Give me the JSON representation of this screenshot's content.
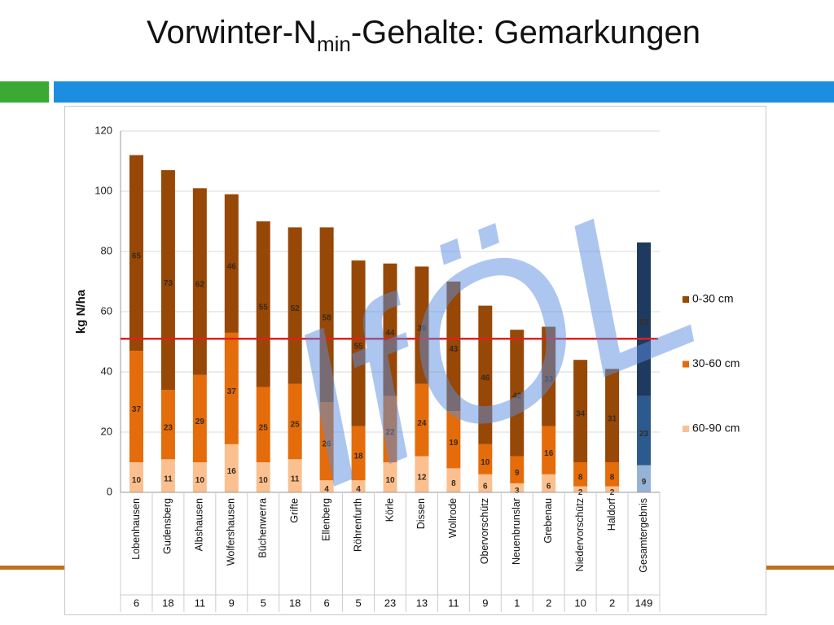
{
  "chart_data": {
    "type": "stacked_bar",
    "title": {
      "main": "Vorwinter-N",
      "sub": "min",
      "rest": "-Gehalte: Gemarkungen"
    },
    "y_axis_label": "kg N/ha",
    "watermark": "IfÖL",
    "categories": [
      "Lobenhausen",
      "Gudensberg",
      "Albshausen",
      "Wolfershausen",
      "Büchenwerra",
      "Grifte",
      "Ellenberg",
      "Röhrenfurth",
      "Körle",
      "Dissen",
      "Wollrode",
      "Obervorschütz",
      "Neuenbrunslar",
      "Grebenau",
      "Niedervorschütz",
      "Haldorf",
      "Gesamtergebnis"
    ],
    "sample_counts": [
      6,
      18,
      11,
      9,
      5,
      18,
      6,
      5,
      23,
      13,
      11,
      9,
      1,
      2,
      10,
      2,
      149
    ],
    "highlight_category": "Gesamtergebnis",
    "series": [
      {
        "name": "60-90 cm",
        "color": "#fac090",
        "highlight_color": "#95b3d7",
        "values": [
          10,
          11,
          10,
          16,
          10,
          11,
          4,
          4,
          10,
          12,
          8,
          6,
          3,
          6,
          2,
          2,
          9
        ]
      },
      {
        "name": "30-60 cm",
        "color": "#e46c0a",
        "highlight_color": "#2b5a8e",
        "values": [
          37,
          23,
          29,
          37,
          25,
          25,
          26,
          18,
          22,
          24,
          19,
          10,
          9,
          16,
          8,
          8,
          23
        ]
      },
      {
        "name": "0-30 cm",
        "color": "#974706",
        "highlight_color": "#1f3a5f",
        "values": [
          65,
          73,
          62,
          46,
          55,
          52,
          58,
          55,
          44,
          39,
          43,
          46,
          42,
          33,
          34,
          31,
          51
        ]
      }
    ],
    "reference_line": 51,
    "reference_color": "#e02020",
    "ylim": [
      0,
      120
    ],
    "yticks": [
      0,
      20,
      40,
      60,
      80,
      100,
      120
    ],
    "grid": true
  }
}
